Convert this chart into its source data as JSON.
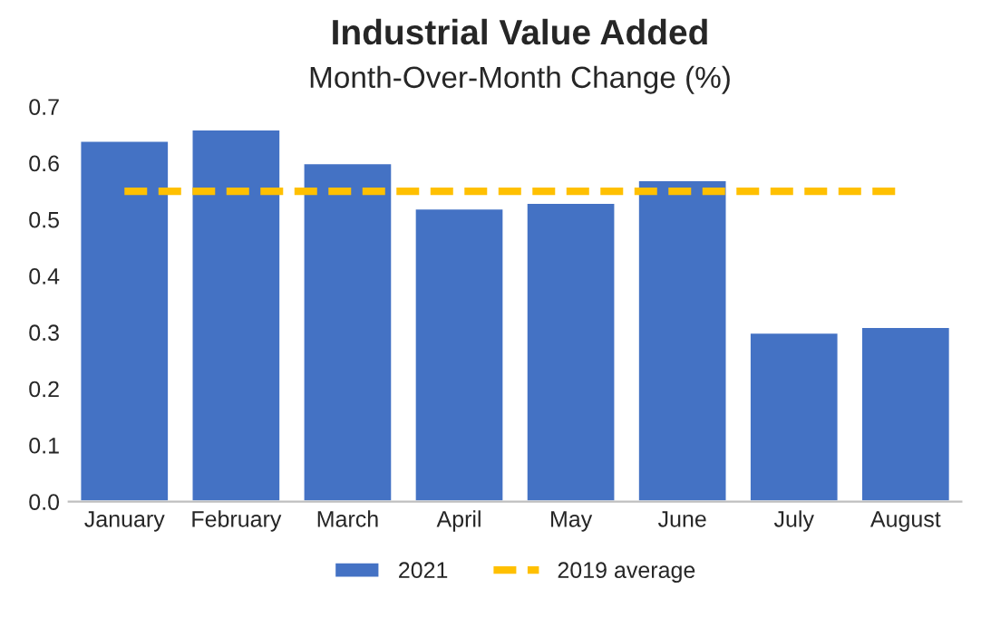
{
  "chart_data": {
    "type": "bar",
    "title": "Industrial Value Added",
    "subtitle": "Month-Over-Month Change (%)",
    "categories": [
      "January",
      "February",
      "March",
      "April",
      "May",
      "June",
      "July",
      "August"
    ],
    "series": [
      {
        "name": "2021",
        "color": "#4472c4",
        "values": [
          0.64,
          0.66,
          0.6,
          0.52,
          0.53,
          0.57,
          0.3,
          0.31
        ]
      },
      {
        "name": "2019 average",
        "type": "line",
        "color": "#ffc000",
        "line_style": "dashed",
        "values": [
          0.55,
          0.55,
          0.55,
          0.55,
          0.55,
          0.55,
          0.55,
          0.55
        ]
      }
    ],
    "ylim": [
      0,
      0.7
    ],
    "yticks": [
      {
        "value": 0,
        "label": "0.0"
      },
      {
        "value": 0.1,
        "label": "0.1"
      },
      {
        "value": 0.2,
        "label": "0.2"
      },
      {
        "value": 0.3,
        "label": "0.3"
      },
      {
        "value": 0.4,
        "label": "0.4"
      },
      {
        "value": 0.5,
        "label": "0.5"
      },
      {
        "value": 0.6,
        "label": "0.6"
      },
      {
        "value": 0.7,
        "label": "0.7"
      }
    ],
    "grid": false,
    "legend": "bottom"
  }
}
